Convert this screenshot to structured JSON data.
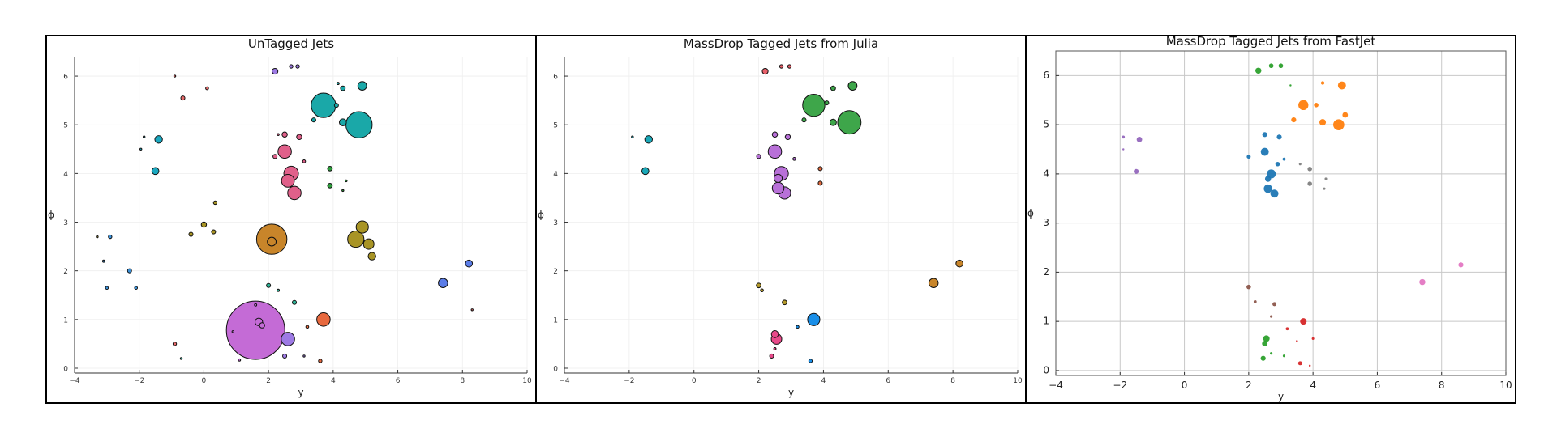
{
  "chart_data": [
    {
      "type": "scatter",
      "title": "UnTagged Jets",
      "xlabel": "y",
      "ylabel": "ϕ",
      "xlim": [
        -4,
        10
      ],
      "ylim": [
        -0.1,
        6.4
      ],
      "xticks": [
        -4,
        -2,
        0,
        2,
        4,
        6,
        8,
        10
      ],
      "yticks": [
        0,
        1,
        2,
        3,
        4,
        5,
        6
      ],
      "grid": true,
      "legend": "none",
      "marker": "bubble",
      "points": [
        {
          "x": 1.6,
          "y": 0.78,
          "s": 10,
          "c": "#c46bd6"
        },
        {
          "x": 1.7,
          "y": 0.95,
          "s": 1.3,
          "c": "#c46bd6"
        },
        {
          "x": 1.8,
          "y": 0.88,
          "s": 0.9,
          "c": "#c46bd6"
        },
        {
          "x": 1.6,
          "y": 1.3,
          "s": 0.4,
          "c": "#c46bd6"
        },
        {
          "x": 1.1,
          "y": 0.17,
          "s": 0.4,
          "c": "#c46bd6"
        },
        {
          "x": 0.9,
          "y": 0.75,
          "s": 0.3,
          "c": "#c46bd6"
        },
        {
          "x": 2.6,
          "y": 0.6,
          "s": 2.3,
          "c": "#9d7ae4"
        },
        {
          "x": 2.5,
          "y": 0.25,
          "s": 0.7,
          "c": "#9d7ae4"
        },
        {
          "x": 3.1,
          "y": 0.25,
          "s": 0.3,
          "c": "#9d7ae4"
        },
        {
          "x": 2.2,
          "y": 6.1,
          "s": 1,
          "c": "#9d7ae4"
        },
        {
          "x": 2.7,
          "y": 6.2,
          "s": 0.6,
          "c": "#9d7ae4"
        },
        {
          "x": 2.9,
          "y": 6.2,
          "s": 0.6,
          "c": "#9d7ae4"
        },
        {
          "x": 3.7,
          "y": 1.0,
          "s": 2.3,
          "c": "#e8693e"
        },
        {
          "x": 3.6,
          "y": 0.15,
          "s": 0.6,
          "c": "#e8693e"
        },
        {
          "x": 3.2,
          "y": 0.85,
          "s": 0.5,
          "c": "#e8693e"
        },
        {
          "x": 2.1,
          "y": 2.65,
          "s": 5.2,
          "c": "#c8852a"
        },
        {
          "x": 2.1,
          "y": 2.6,
          "s": 1.5,
          "c": "#c8852a"
        },
        {
          "x": 2.2,
          "y": 4.35,
          "s": 0.7,
          "c": "#e0608a"
        },
        {
          "x": 2.5,
          "y": 4.45,
          "s": 2.3,
          "c": "#e0608a"
        },
        {
          "x": 2.7,
          "y": 4.0,
          "s": 2.5,
          "c": "#e0608a"
        },
        {
          "x": 2.6,
          "y": 3.85,
          "s": 2.2,
          "c": "#e0608a"
        },
        {
          "x": 2.8,
          "y": 3.6,
          "s": 2.3,
          "c": "#e0608a"
        },
        {
          "x": 2.5,
          "y": 4.8,
          "s": 0.9,
          "c": "#e0608a"
        },
        {
          "x": 2.95,
          "y": 4.75,
          "s": 0.9,
          "c": "#e0608a"
        },
        {
          "x": 3.1,
          "y": 4.25,
          "s": 0.5,
          "c": "#e0608a"
        },
        {
          "x": 2.3,
          "y": 4.8,
          "s": 0.3,
          "c": "#e0608a"
        },
        {
          "x": 3.7,
          "y": 5.4,
          "s": 4.2,
          "c": "#1aa8a8"
        },
        {
          "x": 4.8,
          "y": 5.0,
          "s": 4.5,
          "c": "#1aa8a8"
        },
        {
          "x": 4.9,
          "y": 5.8,
          "s": 1.5,
          "c": "#1aa8a8"
        },
        {
          "x": 4.3,
          "y": 5.05,
          "s": 1.2,
          "c": "#1aa8a8"
        },
        {
          "x": 4.3,
          "y": 5.75,
          "s": 0.8,
          "c": "#1aa8a8"
        },
        {
          "x": 3.4,
          "y": 5.1,
          "s": 0.7,
          "c": "#1aa8a8"
        },
        {
          "x": 4.1,
          "y": 5.4,
          "s": 0.7,
          "c": "#1aa8a8"
        },
        {
          "x": 4.15,
          "y": 5.85,
          "s": 0.4,
          "c": "#1aa8a8"
        },
        {
          "x": -1.4,
          "y": 4.7,
          "s": 1.3,
          "c": "#1aa8c0"
        },
        {
          "x": -1.5,
          "y": 4.05,
          "s": 1.2,
          "c": "#1aa8c0"
        },
        {
          "x": -1.85,
          "y": 4.75,
          "s": 0.3,
          "c": "#1aa8c0"
        },
        {
          "x": -1.95,
          "y": 4.5,
          "s": 0.2,
          "c": "#1aa8c0"
        },
        {
          "x": 3.9,
          "y": 4.1,
          "s": 0.8,
          "c": "#2e9e3c"
        },
        {
          "x": 3.9,
          "y": 3.75,
          "s": 0.8,
          "c": "#2e9e3c"
        },
        {
          "x": 4.3,
          "y": 3.65,
          "s": 0.3,
          "c": "#2e9e3c"
        },
        {
          "x": 4.4,
          "y": 3.85,
          "s": 0.3,
          "c": "#2e9e3c"
        },
        {
          "x": 4.7,
          "y": 2.65,
          "s": 2.8,
          "c": "#a89425"
        },
        {
          "x": 4.9,
          "y": 2.9,
          "s": 2.1,
          "c": "#a89425"
        },
        {
          "x": 5.1,
          "y": 2.55,
          "s": 1.8,
          "c": "#a89425"
        },
        {
          "x": 5.2,
          "y": 2.3,
          "s": 1.3,
          "c": "#a89425"
        },
        {
          "x": 0.3,
          "y": 2.8,
          "s": 0.7,
          "c": "#a89425"
        },
        {
          "x": -0.4,
          "y": 2.75,
          "s": 0.7,
          "c": "#a89425"
        },
        {
          "x": 0.0,
          "y": 2.95,
          "s": 0.9,
          "c": "#a89425"
        },
        {
          "x": 0.35,
          "y": 3.4,
          "s": 0.6,
          "c": "#a89425"
        },
        {
          "x": 7.4,
          "y": 1.75,
          "s": 1.6,
          "c": "#5b7de8"
        },
        {
          "x": 8.2,
          "y": 2.15,
          "s": 1.2,
          "c": "#5b7de8"
        },
        {
          "x": -2.3,
          "y": 2.0,
          "s": 0.7,
          "c": "#3a90d8"
        },
        {
          "x": -2.1,
          "y": 1.65,
          "s": 0.5,
          "c": "#3a90d8"
        },
        {
          "x": -3.0,
          "y": 1.65,
          "s": 0.5,
          "c": "#3a90d8"
        },
        {
          "x": -3.1,
          "y": 2.2,
          "s": 0.4,
          "c": "#3a90d8"
        },
        {
          "x": -2.9,
          "y": 2.7,
          "s": 0.6,
          "c": "#3a90d8"
        },
        {
          "x": 2.0,
          "y": 1.7,
          "s": 0.7,
          "c": "#2eb89a"
        },
        {
          "x": 2.8,
          "y": 1.35,
          "s": 0.7,
          "c": "#2eb89a"
        },
        {
          "x": 2.3,
          "y": 1.6,
          "s": 0.4,
          "c": "#2eb89a"
        },
        {
          "x": -0.65,
          "y": 5.55,
          "s": 0.7,
          "c": "#e86a6a"
        },
        {
          "x": 0.1,
          "y": 5.75,
          "s": 0.5,
          "c": "#e86a6a"
        },
        {
          "x": -0.9,
          "y": 0.5,
          "s": 0.6,
          "c": "#e86a6a"
        },
        {
          "x": -0.9,
          "y": 6.0,
          "s": 0.3,
          "c": "#e86a6a"
        },
        {
          "x": -0.7,
          "y": 0.2,
          "s": 0.3,
          "c": "#2eb89a"
        },
        {
          "x": -3.3,
          "y": 2.7,
          "s": 0.2,
          "c": "#a89425"
        },
        {
          "x": 8.3,
          "y": 1.2,
          "s": 0.2,
          "c": "#e86a6a"
        }
      ]
    },
    {
      "type": "scatter",
      "title": "MassDrop Tagged Jets from Julia",
      "xlabel": "y",
      "ylabel": "ϕ",
      "xlim": [
        -4,
        10
      ],
      "ylim": [
        -0.1,
        6.4
      ],
      "xticks": [
        -4,
        -2,
        0,
        2,
        4,
        6,
        8,
        10
      ],
      "yticks": [
        0,
        1,
        2,
        3,
        4,
        5,
        6
      ],
      "grid": true,
      "legend": "none",
      "marker": "bubble",
      "points": [
        {
          "x": 3.7,
          "y": 5.4,
          "s": 3.8,
          "c": "#3ea64a"
        },
        {
          "x": 4.8,
          "y": 5.05,
          "s": 4.0,
          "c": "#3ea64a"
        },
        {
          "x": 4.9,
          "y": 5.8,
          "s": 1.5,
          "c": "#3ea64a"
        },
        {
          "x": 4.3,
          "y": 5.05,
          "s": 1.1,
          "c": "#3ea64a"
        },
        {
          "x": 4.3,
          "y": 5.75,
          "s": 0.8,
          "c": "#3ea64a"
        },
        {
          "x": 3.4,
          "y": 5.1,
          "s": 0.7,
          "c": "#3ea64a"
        },
        {
          "x": 4.1,
          "y": 5.45,
          "s": 0.7,
          "c": "#3ea64a"
        },
        {
          "x": 2.5,
          "y": 4.45,
          "s": 2.3,
          "c": "#b870d8"
        },
        {
          "x": 2.7,
          "y": 4.0,
          "s": 2.4,
          "c": "#b870d8"
        },
        {
          "x": 2.6,
          "y": 3.7,
          "s": 2.0,
          "c": "#b870d8"
        },
        {
          "x": 2.8,
          "y": 3.6,
          "s": 2.1,
          "c": "#b870d8"
        },
        {
          "x": 2.5,
          "y": 4.8,
          "s": 0.9,
          "c": "#b870d8"
        },
        {
          "x": 2.9,
          "y": 4.75,
          "s": 0.9,
          "c": "#b870d8"
        },
        {
          "x": 2.0,
          "y": 4.35,
          "s": 0.7,
          "c": "#b870d8"
        },
        {
          "x": 3.1,
          "y": 4.3,
          "s": 0.5,
          "c": "#b870d8"
        },
        {
          "x": 2.6,
          "y": 3.9,
          "s": 1.4,
          "c": "#b870d8"
        },
        {
          "x": -1.4,
          "y": 4.7,
          "s": 1.3,
          "c": "#1aa8b8"
        },
        {
          "x": -1.5,
          "y": 4.05,
          "s": 1.2,
          "c": "#1aa8b8"
        },
        {
          "x": -1.9,
          "y": 4.75,
          "s": 0.3,
          "c": "#1aa8b8"
        },
        {
          "x": 2.2,
          "y": 6.1,
          "s": 1.0,
          "c": "#e8606a"
        },
        {
          "x": 2.7,
          "y": 6.2,
          "s": 0.6,
          "c": "#e8606a"
        },
        {
          "x": 2.95,
          "y": 6.2,
          "s": 0.6,
          "c": "#e8606a"
        },
        {
          "x": 3.9,
          "y": 4.1,
          "s": 0.7,
          "c": "#e06a3e"
        },
        {
          "x": 3.9,
          "y": 3.8,
          "s": 0.7,
          "c": "#e06a3e"
        },
        {
          "x": 7.4,
          "y": 1.75,
          "s": 1.6,
          "c": "#c8852a"
        },
        {
          "x": 8.2,
          "y": 2.15,
          "s": 1.2,
          "c": "#c8852a"
        },
        {
          "x": 2.0,
          "y": 1.7,
          "s": 0.8,
          "c": "#b59a2a"
        },
        {
          "x": 2.8,
          "y": 1.35,
          "s": 0.8,
          "c": "#b59a2a"
        },
        {
          "x": 2.1,
          "y": 1.6,
          "s": 0.5,
          "c": "#b59a2a"
        },
        {
          "x": 3.7,
          "y": 1.0,
          "s": 2.1,
          "c": "#1a8fe8"
        },
        {
          "x": 3.6,
          "y": 0.15,
          "s": 0.6,
          "c": "#1a8fe8"
        },
        {
          "x": 3.2,
          "y": 0.85,
          "s": 0.5,
          "c": "#1a8fe8"
        },
        {
          "x": 2.55,
          "y": 0.6,
          "s": 1.8,
          "c": "#e84a8a"
        },
        {
          "x": 2.5,
          "y": 0.7,
          "s": 1.2,
          "c": "#e84a8a"
        },
        {
          "x": 2.4,
          "y": 0.25,
          "s": 0.7,
          "c": "#e84a8a"
        },
        {
          "x": 2.5,
          "y": 0.4,
          "s": 0.4,
          "c": "#e84a8a"
        }
      ]
    },
    {
      "type": "scatter",
      "title": "MassDrop Tagged Jets from FastJet",
      "xlabel": "y",
      "ylabel": "ϕ",
      "xlim": [
        -4,
        10
      ],
      "ylim": [
        -0.1,
        6.5
      ],
      "xticks": [
        -4,
        -2,
        0,
        2,
        4,
        6,
        8,
        10
      ],
      "yticks": [
        0,
        1,
        2,
        3,
        4,
        5,
        6
      ],
      "grid": true,
      "legend": "none",
      "marker": "filled-dot",
      "points": [
        {
          "x": 2.3,
          "y": 6.1,
          "s": 1.2,
          "c": "#2ca02c"
        },
        {
          "x": 2.7,
          "y": 6.2,
          "s": 0.9,
          "c": "#2ca02c"
        },
        {
          "x": 3.0,
          "y": 6.2,
          "s": 0.9,
          "c": "#2ca02c"
        },
        {
          "x": 3.3,
          "y": 5.8,
          "s": 0.4,
          "c": "#2ca02c"
        },
        {
          "x": 3.7,
          "y": 5.4,
          "s": 2.0,
          "c": "#ff7f0e"
        },
        {
          "x": 4.8,
          "y": 5.0,
          "s": 2.2,
          "c": "#ff7f0e"
        },
        {
          "x": 4.9,
          "y": 5.8,
          "s": 1.6,
          "c": "#ff7f0e"
        },
        {
          "x": 4.3,
          "y": 5.05,
          "s": 1.3,
          "c": "#ff7f0e"
        },
        {
          "x": 3.4,
          "y": 5.1,
          "s": 1.0,
          "c": "#ff7f0e"
        },
        {
          "x": 4.1,
          "y": 5.4,
          "s": 0.9,
          "c": "#ff7f0e"
        },
        {
          "x": 4.3,
          "y": 5.85,
          "s": 0.7,
          "c": "#ff7f0e"
        },
        {
          "x": 5.0,
          "y": 5.2,
          "s": 1.1,
          "c": "#ff7f0e"
        },
        {
          "x": 2.5,
          "y": 4.45,
          "s": 1.6,
          "c": "#1f77b4"
        },
        {
          "x": 2.7,
          "y": 4.0,
          "s": 1.8,
          "c": "#1f77b4"
        },
        {
          "x": 2.6,
          "y": 3.7,
          "s": 1.7,
          "c": "#1f77b4"
        },
        {
          "x": 2.8,
          "y": 3.6,
          "s": 1.6,
          "c": "#1f77b4"
        },
        {
          "x": 2.5,
          "y": 4.8,
          "s": 1.0,
          "c": "#1f77b4"
        },
        {
          "x": 2.95,
          "y": 4.75,
          "s": 1.0,
          "c": "#1f77b4"
        },
        {
          "x": 2.0,
          "y": 4.35,
          "s": 0.8,
          "c": "#1f77b4"
        },
        {
          "x": 3.1,
          "y": 4.3,
          "s": 0.6,
          "c": "#1f77b4"
        },
        {
          "x": 2.6,
          "y": 3.9,
          "s": 1.2,
          "c": "#1f77b4"
        },
        {
          "x": 2.9,
          "y": 4.2,
          "s": 0.9,
          "c": "#1f77b4"
        },
        {
          "x": 3.9,
          "y": 4.1,
          "s": 0.9,
          "c": "#7f7f7f"
        },
        {
          "x": 3.9,
          "y": 3.8,
          "s": 0.9,
          "c": "#7f7f7f"
        },
        {
          "x": 4.35,
          "y": 3.7,
          "s": 0.5,
          "c": "#7f7f7f"
        },
        {
          "x": 4.4,
          "y": 3.9,
          "s": 0.5,
          "c": "#7f7f7f"
        },
        {
          "x": 3.6,
          "y": 4.2,
          "s": 0.5,
          "c": "#7f7f7f"
        },
        {
          "x": -1.4,
          "y": 4.7,
          "s": 1.1,
          "c": "#9467bd"
        },
        {
          "x": -1.5,
          "y": 4.05,
          "s": 1.0,
          "c": "#9467bd"
        },
        {
          "x": -1.9,
          "y": 4.75,
          "s": 0.6,
          "c": "#9467bd"
        },
        {
          "x": -1.9,
          "y": 4.5,
          "s": 0.4,
          "c": "#9467bd"
        },
        {
          "x": 7.4,
          "y": 1.8,
          "s": 1.2,
          "c": "#e377c2"
        },
        {
          "x": 8.6,
          "y": 2.15,
          "s": 1.0,
          "c": "#e377c2"
        },
        {
          "x": 2.0,
          "y": 1.7,
          "s": 0.9,
          "c": "#8c564b"
        },
        {
          "x": 2.8,
          "y": 1.35,
          "s": 0.8,
          "c": "#8c564b"
        },
        {
          "x": 2.2,
          "y": 1.4,
          "s": 0.6,
          "c": "#8c564b"
        },
        {
          "x": 2.7,
          "y": 1.1,
          "s": 0.5,
          "c": "#8c564b"
        },
        {
          "x": 3.7,
          "y": 1.0,
          "s": 1.3,
          "c": "#d62728"
        },
        {
          "x": 3.6,
          "y": 0.15,
          "s": 0.8,
          "c": "#d62728"
        },
        {
          "x": 3.2,
          "y": 0.85,
          "s": 0.6,
          "c": "#d62728"
        },
        {
          "x": 4.0,
          "y": 0.65,
          "s": 0.5,
          "c": "#d62728"
        },
        {
          "x": 3.9,
          "y": 0.1,
          "s": 0.4,
          "c": "#d62728"
        },
        {
          "x": 3.5,
          "y": 0.6,
          "s": 0.4,
          "c": "#d62728"
        },
        {
          "x": 2.55,
          "y": 0.65,
          "s": 1.3,
          "c": "#2ca02c"
        },
        {
          "x": 2.5,
          "y": 0.55,
          "s": 1.1,
          "c": "#2ca02c"
        },
        {
          "x": 2.45,
          "y": 0.25,
          "s": 1.0,
          "c": "#2ca02c"
        },
        {
          "x": 3.1,
          "y": 0.3,
          "s": 0.5,
          "c": "#2ca02c"
        },
        {
          "x": 2.7,
          "y": 0.35,
          "s": 0.5,
          "c": "#2ca02c"
        }
      ]
    }
  ]
}
